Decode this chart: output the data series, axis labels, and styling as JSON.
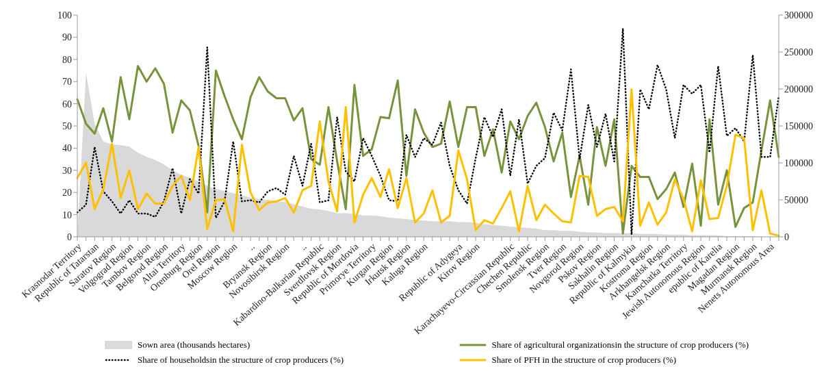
{
  "chart_data": {
    "type": "line",
    "categories": [
      "Krasnodar Territory",
      null,
      "Republic of Tatarstan",
      null,
      "Saratov Region",
      null,
      "Volgograd Region",
      null,
      "Tambov Region",
      null,
      "Belgorod Region",
      null,
      "Altai Territory",
      null,
      "Orenburg Region",
      null,
      "Orel Region",
      null,
      "Moscow Region",
      null,
      "..",
      null,
      "Bryansk Region",
      null,
      "Novosibirsk Region",
      null,
      "..",
      null,
      "Kabardino-Balkarian Republic",
      null,
      "Sverdlovsk Region",
      null,
      "Republic of Mordovia",
      null,
      "Primorye Territory",
      null,
      "Kurgan Region",
      null,
      "Irkutsk Region",
      null,
      "Kaluga Region",
      null,
      null,
      null,
      "Republic of Adygeya",
      null,
      "Kirov Region",
      null,
      null,
      null,
      "Karachayevo-Circassian Republic",
      null,
      "Chechen Republic",
      null,
      "Smolensk Region",
      null,
      "Tver Region",
      null,
      "Novgorod Region",
      null,
      "Pskov Region",
      null,
      "Sakhalin Region",
      null,
      "Republic of Kalmykia",
      null,
      "Kostroma Region",
      null,
      "Arkhangelsk Region",
      null,
      "Kamchatka Territory",
      null,
      "Jewish Autonomous Region",
      null,
      "epublic of Karelia",
      null,
      "Magadan Region",
      null,
      "Murmansk Region",
      null,
      "Nenets Autonomous Area",
      null
    ],
    "series": [
      {
        "name": "Sown area (thousands hectares)",
        "type": "area",
        "axis": "y2",
        "color": "#d9d9d9",
        "values": [
          0,
          222000,
          153000,
          129000,
          125000,
          124000,
          122000,
          114000,
          108000,
          104000,
          98000,
          90000,
          84000,
          80000,
          75000,
          69000,
          65000,
          62000,
          59000,
          56000,
          53000,
          51000,
          50000,
          48000,
          47000,
          44000,
          41000,
          38000,
          37000,
          35000,
          32000,
          32000,
          31000,
          29000,
          29000,
          28000,
          26000,
          25000,
          24000,
          23000,
          22000,
          21000,
          21000,
          21000,
          20000,
          20000,
          19000,
          17000,
          16000,
          15000,
          14000,
          13000,
          12000,
          11000,
          9000,
          9000,
          8000,
          8000,
          7000,
          6000,
          6000,
          5000,
          5000,
          5000,
          5000,
          4000,
          4000,
          4000,
          3000,
          3000,
          3000,
          2000,
          2000,
          2000,
          2000,
          1000,
          1000,
          1000,
          1000,
          0,
          0,
          0
        ]
      },
      {
        "name": "Share of agricultural organizationsin the structure of crop producers (%)",
        "color": "#77933c",
        "values": [
          62,
          51,
          46.5,
          58,
          43,
          72,
          53,
          77,
          70,
          76,
          69,
          47,
          61.5,
          57,
          41,
          11,
          75,
          63.5,
          53,
          44,
          63,
          72,
          65.5,
          62.5,
          62.5,
          52.5,
          58,
          35,
          32.5,
          58.5,
          34,
          12.5,
          68.5,
          36.5,
          39.5,
          54,
          53.5,
          70.5,
          27.5,
          57.5,
          47,
          40.5,
          42,
          61,
          40.5,
          58.5,
          58.5,
          36.5,
          48.5,
          29,
          52,
          44,
          54.5,
          60.5,
          49.5,
          34,
          47,
          18,
          36.5,
          14.5,
          49.5,
          32,
          53,
          1.5,
          32,
          27,
          27,
          17,
          21.5,
          29,
          13.5,
          33,
          5,
          53,
          14.5,
          30,
          4.5,
          13,
          15.5,
          39,
          61.5,
          36
        ]
      },
      {
        "name": "Share of householdsin the structure of crop producers (%)",
        "line_style": "dotted",
        "color": "#000000",
        "values": [
          11,
          14.5,
          40.5,
          20.5,
          16,
          10.5,
          16.5,
          10.5,
          10.5,
          9,
          16,
          31,
          10.5,
          26,
          19.5,
          85.5,
          8.5,
          16,
          43,
          16,
          16.5,
          15.5,
          20.5,
          22,
          19,
          36.5,
          23,
          42,
          15.5,
          16.5,
          54,
          29.5,
          25,
          44.5,
          36.5,
          27.5,
          16.5,
          16,
          46,
          36,
          44.5,
          41.5,
          51.5,
          32,
          21,
          15,
          35.5,
          54,
          45,
          57.5,
          27.5,
          53,
          24,
          32,
          35.5,
          56,
          48,
          75.5,
          35,
          59.5,
          40.5,
          55.5,
          34,
          94,
          1,
          66.5,
          57.5,
          77.5,
          66.5,
          44.5,
          68.5,
          64.5,
          68.5,
          38,
          77,
          45.5,
          49,
          43,
          82,
          36,
          36,
          63.5
        ]
      },
      {
        "name": "Share of PFH in the structure of crop producers (%)",
        "color": "#ffc000",
        "values": [
          26.5,
          33.5,
          12.5,
          21.5,
          42,
          17.5,
          30,
          12.5,
          19.5,
          15,
          15,
          23,
          27.5,
          16.5,
          40.5,
          3.5,
          16.5,
          17,
          2.5,
          41.5,
          20,
          12,
          15.5,
          16,
          17.5,
          11,
          21,
          23,
          52,
          25,
          11.5,
          58.5,
          6.5,
          19,
          26.5,
          18,
          30.5,
          13,
          26.5,
          6.5,
          10.5,
          21,
          6.5,
          9.5,
          39,
          26,
          3,
          7.5,
          6,
          13,
          20.5,
          2.5,
          23,
          7.5,
          14.5,
          10.5,
          7,
          6.5,
          27.5,
          27,
          9.5,
          12.5,
          13.5,
          7,
          66.5,
          5,
          15.5,
          5.5,
          11,
          26,
          17,
          2.5,
          25.5,
          8,
          8.5,
          23,
          46,
          44.5,
          3,
          21,
          1.5,
          0.5
        ]
      }
    ],
    "ylim": [
      0,
      100
    ],
    "yticks": [
      0,
      10,
      20,
      30,
      40,
      50,
      60,
      70,
      80,
      90,
      100
    ],
    "y2lim": [
      0,
      300000
    ],
    "y2ticks": [
      0,
      50000,
      100000,
      150000,
      200000,
      250000,
      300000
    ],
    "grid": false,
    "legend": "bottom",
    "marker": "none",
    "line_style": "solid"
  }
}
